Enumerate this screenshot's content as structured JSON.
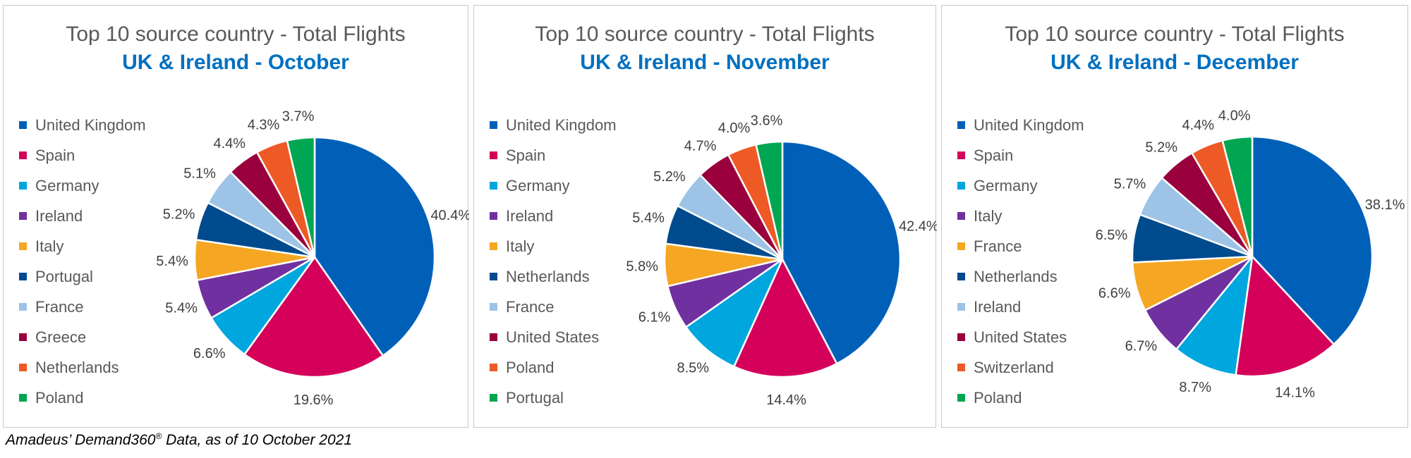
{
  "source": {
    "text": "Amadeus’ Demand360",
    "trademark": "®",
    "suffix": " Data, as of 10 October 2021"
  },
  "colors": {
    "series": [
      "#0060b8",
      "#d4005a",
      "#00a6de",
      "#7030a0",
      "#f5a623",
      "#004b8d",
      "#9dc3e6",
      "#99003d",
      "#ed5a26",
      "#00a651"
    ],
    "title": "#595959",
    "subtitle": "#0070c0"
  },
  "chart_data": [
    {
      "type": "pie",
      "title": "Top 10 source country - Total Flights",
      "subtitle": "UK & Ireland - October",
      "legend_position": "left",
      "categories": [
        "United Kingdom",
        "Spain",
        "Germany",
        "Ireland",
        "Italy",
        "Portugal",
        "France",
        "Greece",
        "Netherlands",
        "Poland"
      ],
      "values": [
        40.4,
        19.6,
        6.6,
        5.4,
        5.4,
        5.2,
        5.1,
        4.4,
        4.3,
        3.7
      ],
      "labels": [
        "40.4%",
        "19.6%",
        "6.6%",
        "5.4%",
        "5.4%",
        "5.2%",
        "5.1%",
        "4.4%",
        "4.3%",
        "3.7%"
      ]
    },
    {
      "type": "pie",
      "title": "Top 10 source country - Total Flights",
      "subtitle": "UK & Ireland - November",
      "legend_position": "left",
      "categories": [
        "United Kingdom",
        "Spain",
        "Germany",
        "Ireland",
        "Italy",
        "Netherlands",
        "France",
        "United States",
        "Poland",
        "Portugal"
      ],
      "values": [
        42.4,
        14.4,
        8.5,
        6.1,
        5.8,
        5.4,
        5.2,
        4.7,
        4.0,
        3.6
      ],
      "labels": [
        "42.4%",
        "14.4%",
        "8.5%",
        "6.1%",
        "5.8%",
        "5.4%",
        "5.2%",
        "4.7%",
        "4.0%",
        "3.6%"
      ]
    },
    {
      "type": "pie",
      "title": "Top 10 source country - Total Flights",
      "subtitle": "UK & Ireland - December",
      "legend_position": "left",
      "categories": [
        "United Kingdom",
        "Spain",
        "Germany",
        "Italy",
        "France",
        "Netherlands",
        "Ireland",
        "United States",
        "Switzerland",
        "Poland"
      ],
      "values": [
        38.1,
        14.1,
        8.7,
        6.7,
        6.6,
        6.5,
        5.7,
        5.2,
        4.4,
        4.0
      ],
      "labels": [
        "38.1%",
        "14.1%",
        "8.7%",
        "6.7%",
        "6.6%",
        "6.5%",
        "5.7%",
        "5.2%",
        "4.4%",
        "4.0%"
      ]
    }
  ]
}
